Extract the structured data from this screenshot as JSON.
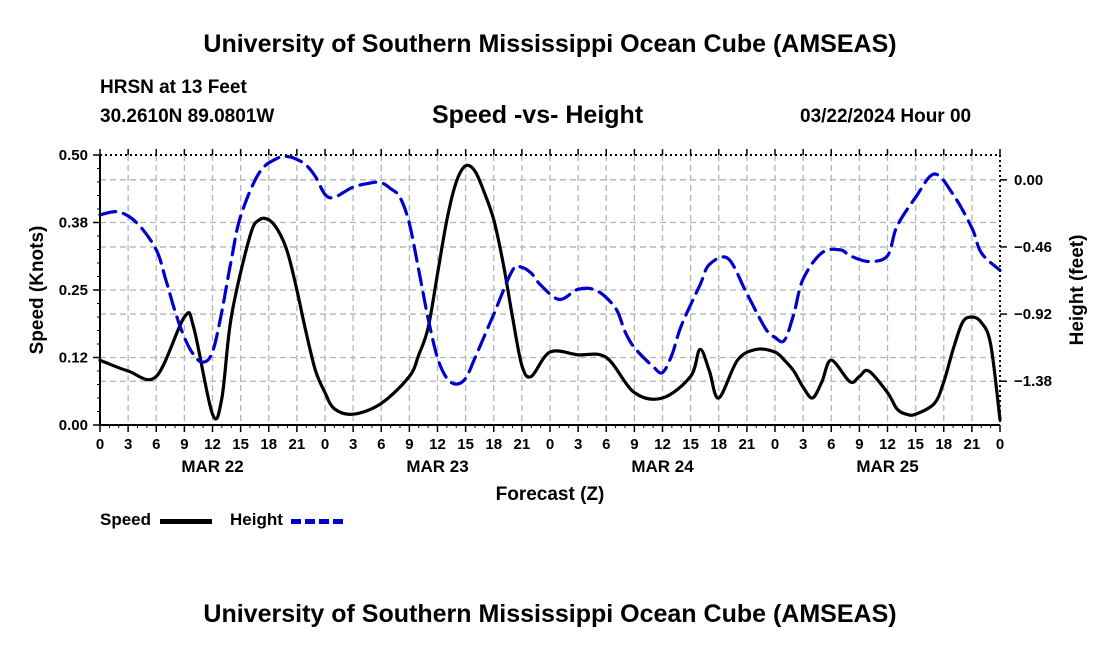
{
  "header": {
    "title": "University of Southern Mississippi Ocean Cube (AMSEAS)",
    "station": "HRSN at 13 Feet",
    "coords": "30.2610N  89.0801W",
    "subtitle": "Speed -vs- Height",
    "date": "03/22/2024 Hour 00"
  },
  "footer": {
    "title": "University of Southern Mississippi Ocean Cube (AMSEAS)"
  },
  "legend": {
    "speed_label": "Speed",
    "height_label": "Height"
  },
  "colors": {
    "speed": "#000000",
    "height": "#0000cc",
    "grid": "#b4b4b4"
  },
  "chart_data": {
    "type": "line",
    "xlabel": "Forecast (Z)",
    "ylabel_left": "Speed (Knots)",
    "ylabel_right": "Height (feet)",
    "x_range": [
      0,
      96
    ],
    "x_ticks": [
      0,
      3,
      6,
      9,
      12,
      15,
      18,
      21,
      24,
      27,
      30,
      33,
      36,
      39,
      42,
      45,
      48,
      51,
      54,
      57,
      60,
      63,
      66,
      69,
      72,
      75,
      78,
      81,
      84,
      87,
      90,
      93,
      96
    ],
    "x_tick_labels": [
      "0",
      "3",
      "6",
      "9",
      "12",
      "15",
      "18",
      "21",
      "0",
      "3",
      "6",
      "9",
      "12",
      "15",
      "18",
      "21",
      "0",
      "3",
      "6",
      "9",
      "12",
      "15",
      "18",
      "21",
      "0",
      "3",
      "6",
      "9",
      "12",
      "15",
      "18",
      "21",
      "0"
    ],
    "day_labels": [
      {
        "label": "MAR 22",
        "x": 12
      },
      {
        "label": "MAR 23",
        "x": 36
      },
      {
        "label": "MAR 24",
        "x": 60
      },
      {
        "label": "MAR 25",
        "x": 84
      }
    ],
    "y_left": {
      "range": [
        0,
        0.5
      ],
      "ticks": [
        0,
        0.125,
        0.25,
        0.375,
        0.5
      ],
      "tick_labels": [
        "0.00",
        "0.12",
        "0.25",
        "0.38",
        "0.50"
      ]
    },
    "y_right": {
      "range": [
        -1.68,
        0.17
      ],
      "ticks": [
        -1.38,
        -0.92,
        -0.46,
        0.0
      ],
      "tick_labels": [
        "−1.38",
        "−0.92",
        "−0.46",
        "0.00"
      ]
    },
    "series": [
      {
        "name": "Speed",
        "axis": "left",
        "style": "solid",
        "x": [
          0,
          3,
          6,
          9,
          10,
          12,
          13,
          14,
          16,
          17,
          18,
          19,
          20,
          21,
          22,
          23,
          24,
          25,
          27,
          30,
          33,
          34,
          35,
          36,
          37,
          38,
          39,
          40,
          41,
          42,
          43,
          44,
          45,
          46,
          48,
          51,
          54,
          57,
          60,
          63,
          64,
          65,
          66,
          68,
          70,
          72,
          73,
          74,
          75,
          76,
          77,
          78,
          80,
          81,
          82,
          84,
          85,
          86,
          87,
          89,
          90,
          91,
          92,
          93,
          94,
          95,
          96
        ],
        "y": [
          0.12,
          0.1,
          0.09,
          0.2,
          0.18,
          0.02,
          0.05,
          0.2,
          0.35,
          0.38,
          0.38,
          0.36,
          0.32,
          0.25,
          0.17,
          0.1,
          0.06,
          0.03,
          0.02,
          0.04,
          0.09,
          0.13,
          0.18,
          0.28,
          0.38,
          0.45,
          0.48,
          0.47,
          0.43,
          0.38,
          0.3,
          0.2,
          0.11,
          0.09,
          0.135,
          0.13,
          0.125,
          0.06,
          0.05,
          0.09,
          0.14,
          0.1,
          0.05,
          0.12,
          0.14,
          0.135,
          0.12,
          0.1,
          0.07,
          0.05,
          0.08,
          0.12,
          0.08,
          0.09,
          0.1,
          0.06,
          0.03,
          0.02,
          0.02,
          0.04,
          0.08,
          0.14,
          0.19,
          0.2,
          0.19,
          0.15,
          0.01
        ]
      },
      {
        "name": "Height",
        "axis": "right",
        "style": "dashed",
        "x": [
          0,
          2,
          4,
          6,
          7,
          8,
          9,
          10,
          11,
          12,
          13,
          14,
          15,
          17,
          19,
          20,
          21,
          22,
          23,
          24,
          25,
          27,
          29,
          30,
          31,
          32,
          33,
          34,
          35,
          36,
          37,
          38,
          39,
          40,
          42,
          44,
          45,
          46,
          47,
          49,
          51,
          53,
          55,
          56,
          57,
          59,
          60,
          61,
          62,
          64,
          65,
          67,
          69,
          71,
          72,
          73,
          74,
          75,
          77,
          79,
          80,
          82,
          84,
          85,
          87,
          89,
          91,
          93,
          94,
          96
        ],
        "y": [
          -0.24,
          -0.22,
          -0.3,
          -0.48,
          -0.68,
          -0.9,
          -1.08,
          -1.2,
          -1.25,
          -1.18,
          -0.9,
          -0.55,
          -0.25,
          0.05,
          0.15,
          0.16,
          0.14,
          0.1,
          0.02,
          -0.1,
          -0.12,
          -0.05,
          -0.02,
          -0.02,
          -0.06,
          -0.12,
          -0.3,
          -0.62,
          -0.95,
          -1.22,
          -1.36,
          -1.4,
          -1.36,
          -1.22,
          -0.92,
          -0.62,
          -0.6,
          -0.64,
          -0.72,
          -0.82,
          -0.75,
          -0.76,
          -0.88,
          -1.04,
          -1.15,
          -1.28,
          -1.32,
          -1.2,
          -1.0,
          -0.72,
          -0.58,
          -0.54,
          -0.78,
          -1.02,
          -1.08,
          -1.1,
          -0.92,
          -0.68,
          -0.5,
          -0.48,
          -0.52,
          -0.56,
          -0.52,
          -0.32,
          -0.12,
          0.04,
          -0.1,
          -0.33,
          -0.5,
          -0.62
        ]
      }
    ]
  }
}
